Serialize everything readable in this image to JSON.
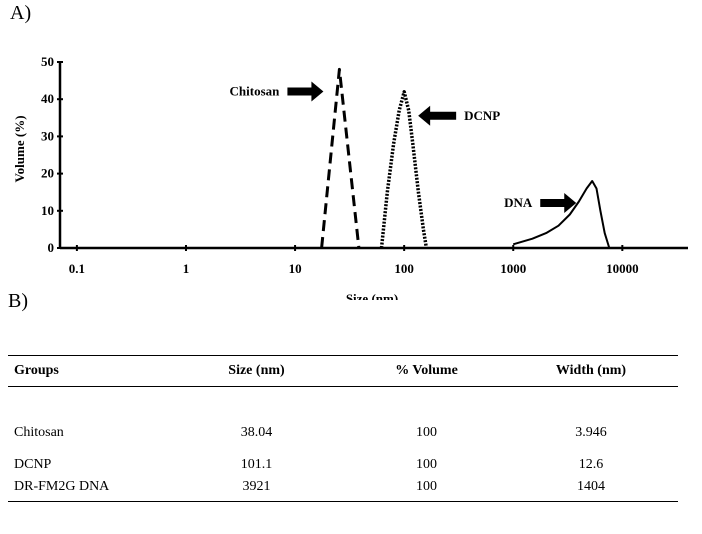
{
  "panels": {
    "a": "A)",
    "b": "B)"
  },
  "chart_data": {
    "type": "line",
    "xlabel": "Size (nm)",
    "ylabel": "Volume (%)",
    "xscale": "log",
    "xlim": [
      0.07,
      40000
    ],
    "ylim": [
      0,
      50
    ],
    "xticks": [
      0.1,
      1,
      10,
      100,
      1000,
      10000
    ],
    "xtick_labels": [
      "0.1",
      "1",
      "10",
      "100",
      "1000",
      "10000"
    ],
    "yticks": [
      0,
      10,
      20,
      30,
      40,
      50
    ],
    "ytick_labels": [
      "0",
      "10",
      "20",
      "30",
      "40",
      "50"
    ],
    "grid": false,
    "series": [
      {
        "name": "Chitosan",
        "style": "dashed",
        "x": [
          17.5,
          25.5,
          38.5
        ],
        "y": [
          0,
          48,
          0
        ]
      },
      {
        "name": "DCNP",
        "style": "dotted-solid",
        "x": [
          62,
          70,
          80,
          90,
          100,
          110,
          120,
          135,
          150,
          160
        ],
        "y": [
          0,
          15,
          28,
          37,
          42,
          37,
          28,
          15,
          5,
          0
        ]
      },
      {
        "name": "DNA",
        "style": "solid",
        "x": [
          1000,
          1500,
          2000,
          2600,
          3300,
          4000,
          4700,
          5300,
          5800,
          6300,
          6900,
          7600
        ],
        "y": [
          1,
          2.5,
          4,
          6,
          9,
          12.5,
          16,
          18,
          16,
          10,
          4,
          0
        ]
      }
    ],
    "annotations": [
      {
        "text": "Chitosan",
        "target": "Chitosan",
        "arrow": "right"
      },
      {
        "text": "DCNP",
        "target": "DCNP",
        "arrow": "left"
      },
      {
        "text": "DNA",
        "target": "DNA",
        "arrow": "right"
      }
    ]
  },
  "table": {
    "headers": [
      "Groups",
      "Size (nm)",
      "% Volume",
      "Width (nm)"
    ],
    "rows": [
      [
        "Chitosan",
        "38.04",
        "100",
        "3.946"
      ],
      [
        "DCNP",
        "101.1",
        "100",
        "12.6"
      ],
      [
        "DR-FM2G DNA",
        "3921",
        "100",
        "1404"
      ]
    ]
  }
}
